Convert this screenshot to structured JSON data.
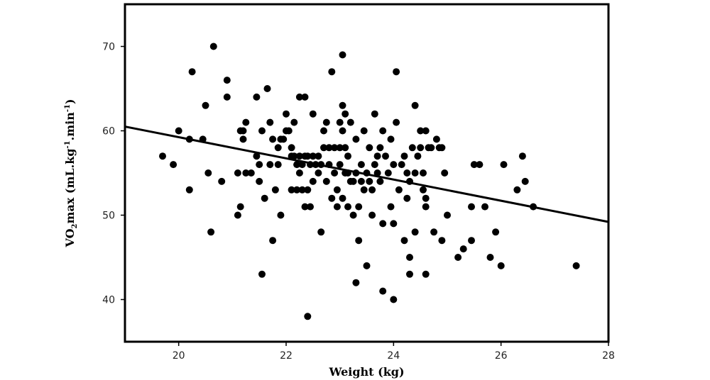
{
  "chart_data": {
    "type": "scatter",
    "title": "",
    "xlabel": "Weight (kg)",
    "ylabel_parts": [
      "VO",
      "2",
      "max (mL.kg",
      "-1",
      ".min",
      "-1",
      ")"
    ],
    "xlim": [
      19,
      28
    ],
    "ylim": [
      35,
      75
    ],
    "xticks": [
      20,
      22,
      24,
      26,
      28
    ],
    "yticks": [
      40,
      50,
      60,
      70
    ],
    "grid": false,
    "legend": "none",
    "marker_color": "#000000",
    "trendline": {
      "x": [
        19,
        28
      ],
      "y": [
        60.5,
        49.2
      ]
    },
    "series": [
      {
        "points": [
          [
            19.7,
            57
          ],
          [
            19.9,
            56
          ],
          [
            20.0,
            60
          ],
          [
            20.2,
            53
          ],
          [
            20.2,
            59
          ],
          [
            20.25,
            67
          ],
          [
            20.45,
            59
          ],
          [
            20.5,
            63
          ],
          [
            20.55,
            55
          ],
          [
            20.6,
            48
          ],
          [
            20.65,
            70
          ],
          [
            20.8,
            54
          ],
          [
            20.9,
            64
          ],
          [
            20.9,
            66
          ],
          [
            21.1,
            55
          ],
          [
            21.1,
            50
          ],
          [
            21.15,
            60
          ],
          [
            21.15,
            51
          ],
          [
            21.2,
            60
          ],
          [
            21.2,
            59
          ],
          [
            21.25,
            61
          ],
          [
            21.25,
            55
          ],
          [
            21.35,
            55
          ],
          [
            21.45,
            64
          ],
          [
            21.45,
            57
          ],
          [
            21.5,
            56
          ],
          [
            21.5,
            54
          ],
          [
            21.55,
            43
          ],
          [
            21.55,
            60
          ],
          [
            21.6,
            52
          ],
          [
            21.65,
            65
          ],
          [
            21.7,
            61
          ],
          [
            21.7,
            56
          ],
          [
            21.75,
            59
          ],
          [
            21.75,
            47
          ],
          [
            21.8,
            53
          ],
          [
            21.85,
            56
          ],
          [
            21.85,
            58
          ],
          [
            21.9,
            59
          ],
          [
            21.9,
            50
          ],
          [
            21.95,
            59
          ],
          [
            22.0,
            62
          ],
          [
            22.0,
            60
          ],
          [
            22.05,
            60
          ],
          [
            22.1,
            58
          ],
          [
            22.1,
            57
          ],
          [
            22.1,
            53
          ],
          [
            22.15,
            57
          ],
          [
            22.15,
            61
          ],
          [
            22.2,
            56
          ],
          [
            22.2,
            53
          ],
          [
            22.25,
            64
          ],
          [
            22.25,
            57
          ],
          [
            22.25,
            55
          ],
          [
            22.3,
            56
          ],
          [
            22.3,
            53
          ],
          [
            22.35,
            64
          ],
          [
            22.35,
            57
          ],
          [
            22.35,
            51
          ],
          [
            22.4,
            53
          ],
          [
            22.4,
            57
          ],
          [
            22.45,
            56
          ],
          [
            22.45,
            51
          ],
          [
            22.4,
            38
          ],
          [
            22.5,
            62
          ],
          [
            22.5,
            57
          ],
          [
            22.5,
            54
          ],
          [
            22.55,
            56
          ],
          [
            22.6,
            55
          ],
          [
            22.6,
            57
          ],
          [
            22.65,
            48
          ],
          [
            22.65,
            56
          ],
          [
            22.7,
            60
          ],
          [
            22.7,
            58
          ],
          [
            22.75,
            61
          ],
          [
            22.75,
            54
          ],
          [
            22.8,
            58
          ],
          [
            22.8,
            56
          ],
          [
            22.85,
            52
          ],
          [
            22.85,
            67
          ],
          [
            22.9,
            58
          ],
          [
            22.9,
            55
          ],
          [
            22.95,
            53
          ],
          [
            22.95,
            51
          ],
          [
            23.0,
            61
          ],
          [
            23.0,
            58
          ],
          [
            23.0,
            56
          ],
          [
            23.05,
            60
          ],
          [
            23.05,
            52
          ],
          [
            23.05,
            63
          ],
          [
            23.1,
            55
          ],
          [
            23.1,
            58
          ],
          [
            23.1,
            62
          ],
          [
            23.15,
            57
          ],
          [
            23.15,
            55
          ],
          [
            23.15,
            51
          ],
          [
            23.2,
            54
          ],
          [
            23.2,
            61
          ],
          [
            23.25,
            54
          ],
          [
            23.25,
            50
          ],
          [
            23.05,
            69
          ],
          [
            23.3,
            59
          ],
          [
            23.3,
            55
          ],
          [
            23.3,
            42
          ],
          [
            23.35,
            51
          ],
          [
            23.35,
            47
          ],
          [
            23.4,
            56
          ],
          [
            23.4,
            54
          ],
          [
            23.45,
            60
          ],
          [
            23.45,
            53
          ],
          [
            23.5,
            55
          ],
          [
            23.5,
            44
          ],
          [
            23.55,
            58
          ],
          [
            23.55,
            54
          ],
          [
            23.6,
            53
          ],
          [
            23.6,
            50
          ],
          [
            23.65,
            62
          ],
          [
            23.65,
            56
          ],
          [
            23.7,
            57
          ],
          [
            23.7,
            55
          ],
          [
            23.75,
            58
          ],
          [
            23.75,
            54
          ],
          [
            23.8,
            60
          ],
          [
            23.8,
            49
          ],
          [
            23.8,
            41
          ],
          [
            23.85,
            57
          ],
          [
            23.9,
            55
          ],
          [
            23.95,
            59
          ],
          [
            23.95,
            51
          ],
          [
            24.0,
            56
          ],
          [
            24.0,
            49
          ],
          [
            24.0,
            40
          ],
          [
            24.05,
            67
          ],
          [
            24.05,
            61
          ],
          [
            24.1,
            53
          ],
          [
            24.15,
            56
          ],
          [
            24.2,
            57
          ],
          [
            24.2,
            47
          ],
          [
            24.25,
            55
          ],
          [
            24.25,
            52
          ],
          [
            24.3,
            54
          ],
          [
            24.3,
            45
          ],
          [
            24.3,
            43
          ],
          [
            24.35,
            58
          ],
          [
            24.4,
            63
          ],
          [
            24.4,
            55
          ],
          [
            24.4,
            48
          ],
          [
            24.45,
            57
          ],
          [
            24.5,
            60
          ],
          [
            24.5,
            58
          ],
          [
            24.55,
            55
          ],
          [
            24.55,
            53
          ],
          [
            24.6,
            60
          ],
          [
            24.6,
            52
          ],
          [
            24.6,
            51
          ],
          [
            24.6,
            43
          ],
          [
            24.65,
            58
          ],
          [
            24.7,
            58
          ],
          [
            24.75,
            48
          ],
          [
            24.8,
            59
          ],
          [
            24.85,
            58
          ],
          [
            24.9,
            47
          ],
          [
            24.9,
            58
          ],
          [
            24.95,
            55
          ],
          [
            25.0,
            50
          ],
          [
            25.2,
            45
          ],
          [
            25.3,
            46
          ],
          [
            25.45,
            51
          ],
          [
            25.45,
            47
          ],
          [
            25.5,
            56
          ],
          [
            25.6,
            56
          ],
          [
            25.7,
            51
          ],
          [
            25.8,
            45
          ],
          [
            25.9,
            48
          ],
          [
            26.0,
            44
          ],
          [
            26.05,
            56
          ],
          [
            26.3,
            53
          ],
          [
            26.4,
            57
          ],
          [
            26.45,
            54
          ],
          [
            26.6,
            51
          ],
          [
            27.4,
            44
          ]
        ]
      }
    ]
  }
}
